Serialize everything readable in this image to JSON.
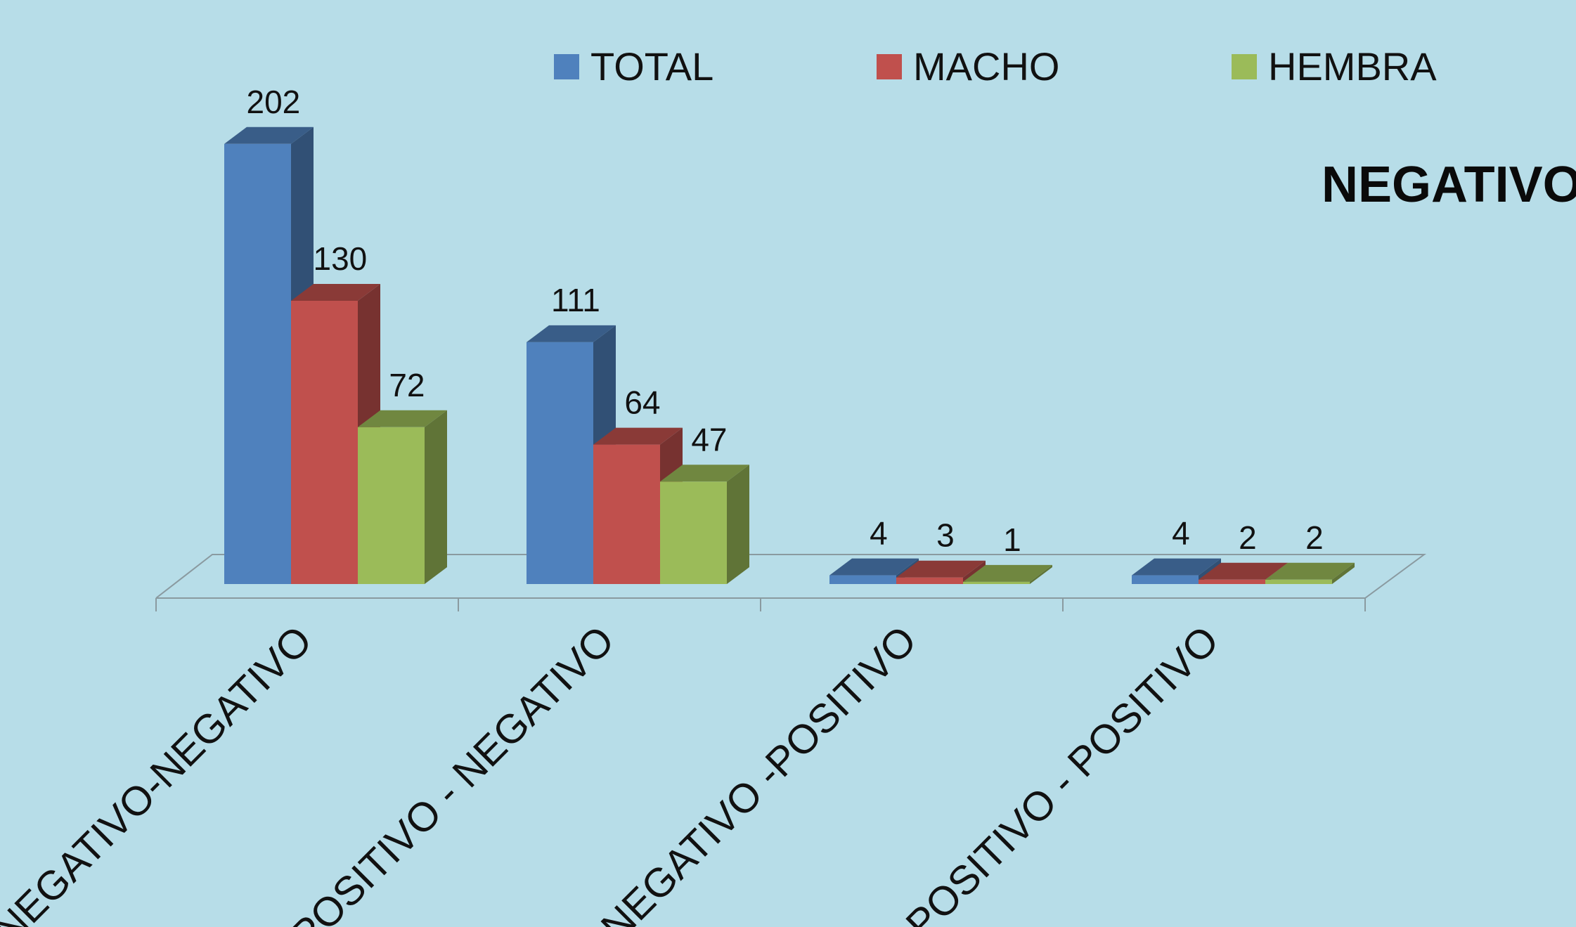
{
  "side_title": "NEGATIVO",
  "colors": {
    "background": "#b7dde8",
    "TOTAL": "#4f81bd",
    "MACHO": "#c0504d",
    "HEMBRA": "#9bbb59"
  },
  "chart_data": {
    "type": "bar",
    "style": "3d-clustered-column",
    "title": "",
    "xlabel": "",
    "ylabel": "",
    "categories": [
      "NEGATIVO-NEGATIVO",
      "POSITIVO - NEGATIVO",
      "NEGATIVO -POSITIVO",
      "POSITIVO - POSITIVO"
    ],
    "series": [
      {
        "name": "TOTAL",
        "values": [
          202,
          111,
          4,
          4
        ]
      },
      {
        "name": "MACHO",
        "values": [
          130,
          64,
          3,
          2
        ]
      },
      {
        "name": "HEMBRA",
        "values": [
          72,
          47,
          1,
          2
        ]
      }
    ],
    "ylim": [
      0,
      202
    ],
    "data_labels": true,
    "grid": false,
    "legend": "top"
  }
}
